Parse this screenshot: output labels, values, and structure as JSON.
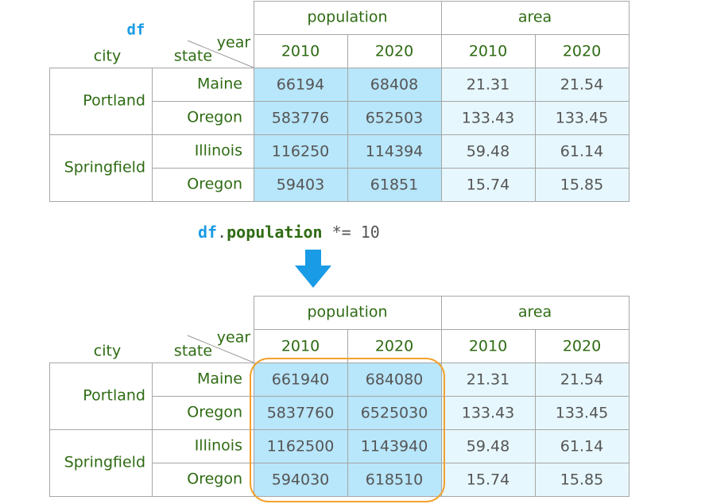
{
  "df_label": "df",
  "code": {
    "var": "df",
    "dot": ".",
    "attr": "population",
    "rest": " *= 10"
  },
  "colors": {
    "accent": "#1a9be6",
    "text": "#2e6b13",
    "population_fill": "#b8e6fa",
    "area_fill": "#e6f7fd",
    "highlight": "#f2a22e"
  },
  "tables": [
    {
      "header": {
        "level0": [
          "population",
          "area"
        ],
        "level1": [
          "2010",
          "2020",
          "2010",
          "2020"
        ],
        "columns_name": "year",
        "index_names": [
          "city",
          "state"
        ]
      },
      "cities": [
        "Portland",
        "Springfield"
      ],
      "states": [
        "Maine",
        "Oregon",
        "Illinois",
        "Oregon"
      ],
      "rows": [
        [
          "66194",
          "68408",
          "21.31",
          "21.54"
        ],
        [
          "583776",
          "652503",
          "133.43",
          "133.45"
        ],
        [
          "116250",
          "114394",
          "59.48",
          "61.14"
        ],
        [
          "59403",
          "61851",
          "15.74",
          "15.85"
        ]
      ]
    },
    {
      "header": {
        "level0": [
          "population",
          "area"
        ],
        "level1": [
          "2010",
          "2020",
          "2010",
          "2020"
        ],
        "columns_name": "year",
        "index_names": [
          "city",
          "state"
        ]
      },
      "cities": [
        "Portland",
        "Springfield"
      ],
      "states": [
        "Maine",
        "Oregon",
        "Illinois",
        "Oregon"
      ],
      "rows": [
        [
          "661940",
          "684080",
          "21.31",
          "21.54"
        ],
        [
          "5837760",
          "6525030",
          "133.43",
          "133.45"
        ],
        [
          "1162500",
          "1143940",
          "59.48",
          "61.14"
        ],
        [
          "594030",
          "618510",
          "15.74",
          "15.85"
        ]
      ]
    }
  ]
}
